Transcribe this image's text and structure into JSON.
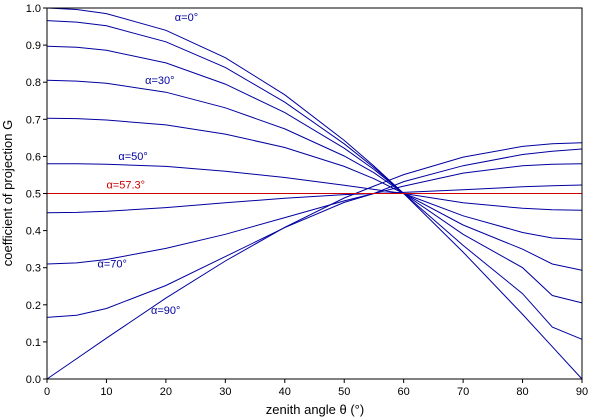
{
  "chart_data": {
    "type": "line",
    "xlabel": "zenith angle θ (°)",
    "ylabel": "coefficient of projection G",
    "xlim": [
      0,
      90
    ],
    "ylim": [
      0.0,
      1.0
    ],
    "x_ticks": [
      "0",
      "10",
      "20",
      "30",
      "40",
      "50",
      "60",
      "70",
      "80",
      "90"
    ],
    "y_ticks": [
      "0.0",
      "0.1",
      "0.2",
      "0.3",
      "0.4",
      "0.5",
      "0.6",
      "0.7",
      "0.8",
      "0.9",
      "1.0"
    ],
    "grid": false,
    "line_color": "#0000a0",
    "highlight_color": "#cc0000",
    "series": [
      {
        "x": [
          0,
          5,
          10,
          20,
          30,
          40,
          50,
          55,
          60,
          70,
          80,
          85,
          90
        ],
        "values": [
          1.0,
          0.996,
          0.985,
          0.94,
          0.866,
          0.766,
          0.643,
          0.574,
          0.5,
          0.342,
          0.174,
          0.087,
          0.0
        ]
      },
      {
        "x": [
          0,
          5,
          10,
          20,
          30,
          40,
          50,
          55,
          60,
          70,
          80,
          85,
          90
        ],
        "values": [
          0.966,
          0.962,
          0.952,
          0.909,
          0.84,
          0.746,
          0.634,
          0.57,
          0.5,
          0.36,
          0.23,
          0.14,
          0.107
        ]
      },
      {
        "x": [
          0,
          5,
          10,
          20,
          30,
          40,
          50,
          55,
          60,
          70,
          80,
          85,
          90
        ],
        "values": [
          0.897,
          0.894,
          0.886,
          0.852,
          0.795,
          0.718,
          0.622,
          0.565,
          0.5,
          0.39,
          0.3,
          0.225,
          0.205
        ]
      },
      {
        "x": [
          0,
          5,
          10,
          20,
          30,
          40,
          50,
          55,
          60,
          70,
          80,
          85,
          90
        ],
        "values": [
          0.805,
          0.803,
          0.797,
          0.773,
          0.731,
          0.674,
          0.601,
          0.556,
          0.5,
          0.415,
          0.35,
          0.31,
          0.293
        ]
      },
      {
        "x": [
          0,
          5,
          10,
          20,
          30,
          40,
          50,
          55,
          60,
          70,
          80,
          85,
          90
        ],
        "values": [
          0.703,
          0.702,
          0.698,
          0.685,
          0.66,
          0.624,
          0.573,
          0.54,
          0.5,
          0.44,
          0.395,
          0.38,
          0.376
        ]
      },
      {
        "x": [
          0,
          5,
          10,
          20,
          30,
          40,
          50,
          55,
          60,
          70,
          80,
          85,
          90
        ],
        "values": [
          0.58,
          0.58,
          0.579,
          0.573,
          0.56,
          0.543,
          0.522,
          0.511,
          0.5,
          0.475,
          0.46,
          0.456,
          0.455
        ]
      },
      {
        "x": [
          0,
          5,
          10,
          20,
          30,
          40,
          50,
          55,
          60,
          70,
          80,
          85,
          90
        ],
        "values": [
          0.448,
          0.449,
          0.452,
          0.462,
          0.475,
          0.487,
          0.497,
          0.5,
          0.503,
          0.51,
          0.518,
          0.521,
          0.523
        ]
      },
      {
        "x": [
          0,
          5,
          10,
          20,
          30,
          40,
          50,
          55,
          60,
          70,
          80,
          85,
          90
        ],
        "values": [
          0.31,
          0.313,
          0.322,
          0.352,
          0.39,
          0.435,
          0.48,
          0.5,
          0.52,
          0.555,
          0.575,
          0.579,
          0.58
        ]
      },
      {
        "x": [
          0,
          5,
          10,
          20,
          30,
          40,
          50,
          55,
          60,
          70,
          80,
          85,
          90
        ],
        "values": [
          0.166,
          0.172,
          0.19,
          0.252,
          0.33,
          0.408,
          0.476,
          0.5,
          0.532,
          0.575,
          0.605,
          0.614,
          0.62
        ]
      },
      {
        "x": [
          0,
          5,
          10,
          20,
          30,
          40,
          50,
          55,
          60,
          70,
          80,
          85,
          90
        ],
        "values": [
          0.0,
          0.055,
          0.11,
          0.218,
          0.318,
          0.409,
          0.488,
          0.52,
          0.551,
          0.598,
          0.627,
          0.634,
          0.637
        ]
      },
      {
        "x": [
          0,
          90
        ],
        "values": [
          0.5,
          0.5
        ],
        "highlight": true
      }
    ],
    "annotations": [
      {
        "text": "α=0°",
        "x": 21.5,
        "y": 0.965,
        "color": "#0000a0"
      },
      {
        "text": "α=30°",
        "x": 16.5,
        "y": 0.795,
        "color": "#0000a0"
      },
      {
        "text": "α=50°",
        "x": 12,
        "y": 0.59,
        "color": "#0000a0"
      },
      {
        "text": "α=57.3°",
        "x": 10,
        "y": 0.513,
        "color": "#cc0000"
      },
      {
        "text": "α=70°",
        "x": 8.5,
        "y": 0.3,
        "color": "#0000a0"
      },
      {
        "text": "α=90°",
        "x": 17.5,
        "y": 0.175,
        "color": "#0000a0"
      }
    ]
  }
}
